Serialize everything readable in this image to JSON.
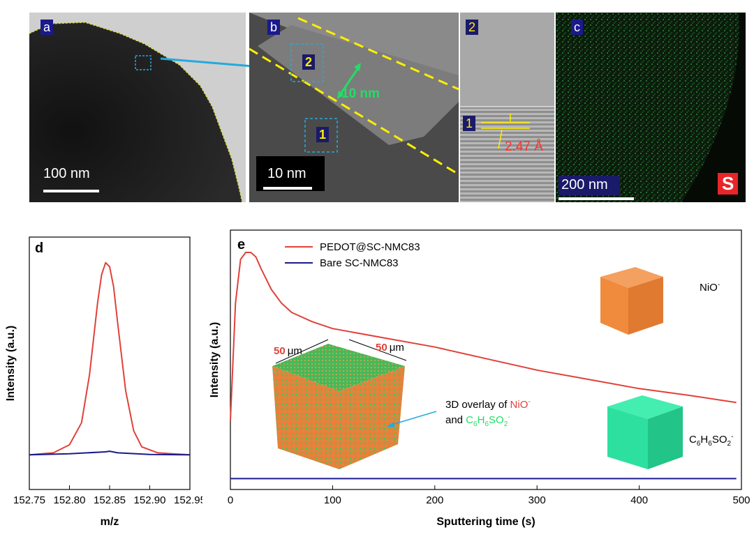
{
  "top_panels": {
    "a": {
      "tag": "a",
      "scale_text": "100 nm"
    },
    "b": {
      "tag": "b",
      "scale_text": "10 nm",
      "region_labels": [
        "2",
        "1"
      ],
      "thickness_text": "10 nm"
    },
    "inset": {
      "label_top": "2",
      "label_bottom": "1",
      "spacing_text": "2.47 Å"
    },
    "c": {
      "tag": "c",
      "scale_text": "200 nm",
      "element_text": "S"
    }
  },
  "colors": {
    "red": "#e0413a",
    "navy": "#1a1a8c",
    "yellow": "#f0e020",
    "cyan": "#22aadd",
    "green": "#22dd66",
    "orange": "#f08a3c",
    "teal": "#2ee0a0"
  },
  "chart_data": [
    {
      "panel": "d",
      "type": "line",
      "xlabel": "m/z",
      "ylabel": "Intensity (a.u.)",
      "xlim": [
        152.75,
        152.95
      ],
      "x_ticks": [
        "152.75",
        "152.80",
        "152.85",
        "152.90",
        "152.95"
      ],
      "series": [
        {
          "color": "#e0413a",
          "x": [
            152.75,
            152.78,
            152.8,
            152.815,
            152.825,
            152.835,
            152.84,
            152.845,
            152.85,
            152.855,
            152.86,
            152.87,
            152.88,
            152.89,
            152.91,
            152.95
          ],
          "y": [
            0.02,
            0.03,
            0.07,
            0.18,
            0.42,
            0.78,
            0.92,
            0.98,
            0.96,
            0.86,
            0.68,
            0.34,
            0.14,
            0.06,
            0.03,
            0.02
          ]
        },
        {
          "color": "#1a1a8c",
          "x": [
            152.75,
            152.8,
            152.845,
            152.85,
            152.86,
            152.9,
            152.95
          ],
          "y": [
            0.02,
            0.025,
            0.035,
            0.038,
            0.03,
            0.022,
            0.02
          ]
        }
      ]
    },
    {
      "panel": "e",
      "type": "line",
      "xlabel": "Sputtering time (s)",
      "ylabel": "Intensity (a.u.)",
      "xlim": [
        0,
        500
      ],
      "x_ticks": [
        "0",
        "100",
        "200",
        "300",
        "400",
        "500"
      ],
      "series": [
        {
          "name": "PEDOT@SC-NMC83",
          "color": "#e0413a",
          "x": [
            0,
            5,
            10,
            15,
            20,
            25,
            30,
            40,
            50,
            60,
            80,
            100,
            150,
            200,
            250,
            300,
            350,
            400,
            450,
            495
          ],
          "y": [
            0.27,
            0.78,
            0.97,
            1.0,
            1.0,
            0.98,
            0.93,
            0.84,
            0.78,
            0.74,
            0.7,
            0.67,
            0.63,
            0.59,
            0.54,
            0.49,
            0.45,
            0.41,
            0.38,
            0.35
          ]
        },
        {
          "name": "Bare SC-NMC83",
          "color": "#1a1a8c",
          "x": [
            0,
            100,
            200,
            300,
            400,
            495
          ],
          "y": [
            0.02,
            0.02,
            0.02,
            0.02,
            0.02,
            0.02
          ]
        }
      ],
      "annotations": {
        "dim_left_num": "50",
        "dim_left_unit": "μm",
        "dim_right_num": "50",
        "dim_right_unit": "μm",
        "overlay_line1": "3D overlay of ",
        "overlay_red": "NiO",
        "overlay_line2": "and ",
        "overlay_green": "C",
        "nio_label": "NiO",
        "c6_label": "C",
        "c6_sub1": "6",
        "c6_mid": "H",
        "c6_sub2": "6",
        "c6_end": "SO",
        "c6_sub3": "2"
      }
    }
  ]
}
